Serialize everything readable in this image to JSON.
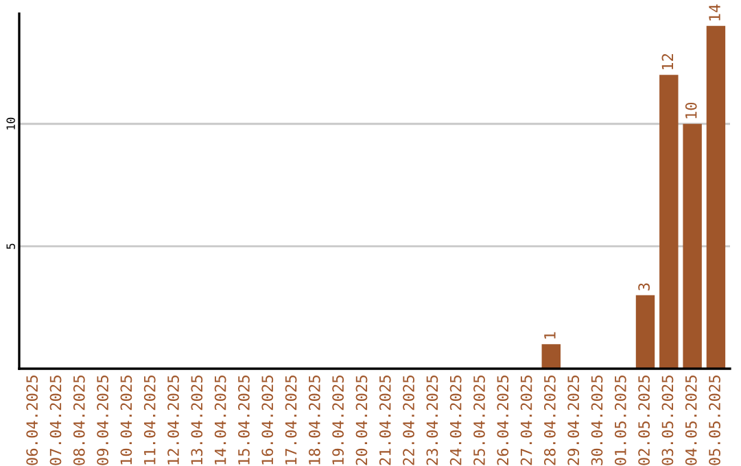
{
  "chart_data": {
    "type": "bar",
    "categories": [
      "06.04.2025",
      "07.04.2025",
      "08.04.2025",
      "09.04.2025",
      "10.04.2025",
      "11.04.2025",
      "12.04.2025",
      "13.04.2025",
      "14.04.2025",
      "15.04.2025",
      "16.04.2025",
      "17.04.2025",
      "18.04.2025",
      "19.04.2025",
      "20.04.2025",
      "21.04.2025",
      "22.04.2025",
      "23.04.2025",
      "24.04.2025",
      "25.04.2025",
      "26.04.2025",
      "27.04.2025",
      "28.04.2025",
      "29.04.2025",
      "30.04.2025",
      "01.05.2025",
      "02.05.2025",
      "03.05.2025",
      "04.05.2025",
      "05.05.2025"
    ],
    "values": [
      0,
      0,
      0,
      0,
      0,
      0,
      0,
      0,
      0,
      0,
      0,
      0,
      0,
      0,
      0,
      0,
      0,
      0,
      0,
      0,
      0,
      0,
      1,
      0,
      0,
      0,
      3,
      12,
      10,
      14
    ],
    "value_labels": [
      null,
      null,
      null,
      null,
      null,
      null,
      null,
      null,
      null,
      null,
      null,
      null,
      null,
      null,
      null,
      null,
      null,
      null,
      null,
      null,
      null,
      null,
      "1",
      null,
      null,
      null,
      "3",
      "12",
      "10",
      "14"
    ],
    "color": "#a0562a",
    "ylim": [
      0,
      14.5
    ],
    "yticks": [
      5,
      10
    ],
    "grid": "y"
  }
}
